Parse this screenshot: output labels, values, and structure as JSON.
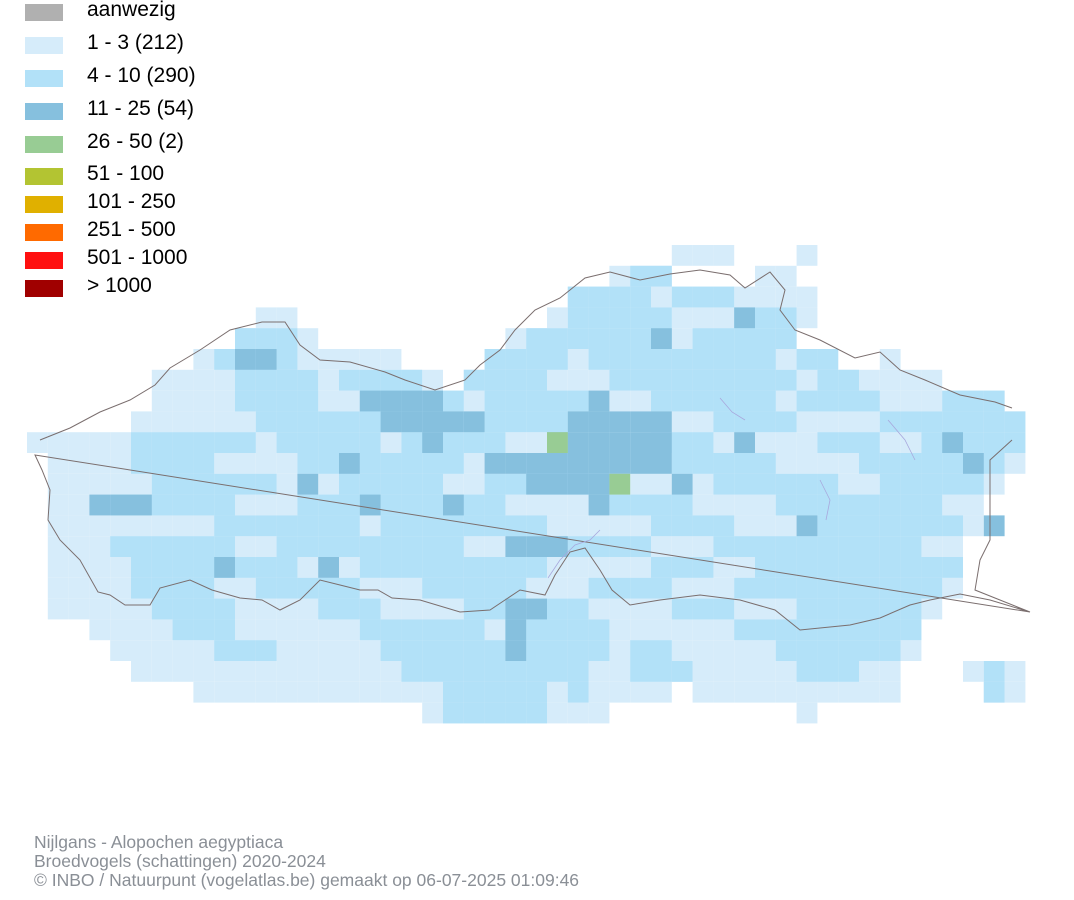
{
  "legend": {
    "items": [
      {
        "label": "aanwezig",
        "color": "#b0b0b0"
      },
      {
        "label": "1 - 3 (212)",
        "color": "#d6ecfa"
      },
      {
        "label": "4 - 10 (290)",
        "color": "#b2e1f8"
      },
      {
        "label": "11 - 25 (54)",
        "color": "#86c0de"
      },
      {
        "label": "26 - 50 (2)",
        "color": "#98cc94"
      },
      {
        "label": "51 - 100",
        "color": "#b3c432"
      },
      {
        "label": "101 - 250",
        "color": "#e0b000"
      },
      {
        "label": "251 - 500",
        "color": "#ff6a00"
      },
      {
        "label": "501 - 1000",
        "color": "#ff1010"
      },
      {
        "label": "> 1000",
        "color": "#a00000"
      }
    ]
  },
  "credits": {
    "species": "Nijlgans - Alopochen aegyptiaca",
    "dataset": "Broedvogels (schattingen) 2020-2024",
    "copyright": "© INBO / Natuurpunt (vogelatlas.be) gemaakt op 06-07-2025 01:09:46"
  },
  "map": {
    "border_color": "#7a6e6e",
    "class_colors": [
      "#d6ecfa",
      "#b2e1f8",
      "#86c0de",
      "#98cc94"
    ]
  }
}
